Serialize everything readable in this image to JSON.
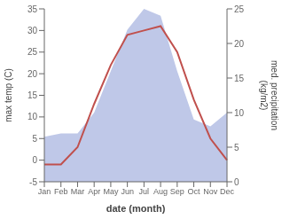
{
  "chart_data": {
    "type": "line",
    "x_label": "date (month)",
    "y_label": "max temp (C)",
    "y2_label": "med. precipitation\n(kg/m2)",
    "categories": [
      "Jan",
      "Feb",
      "Mar",
      "Apr",
      "May",
      "Jun",
      "Jul",
      "Aug",
      "Sep",
      "Oct",
      "Nov",
      "Dec"
    ],
    "series": [
      {
        "type": "area",
        "color": "#bfc8e8",
        "axis": "y2",
        "values": [
          6.5,
          7,
          7,
          10,
          16,
          22,
          25,
          24,
          16,
          9,
          8,
          10
        ]
      },
      {
        "type": "line",
        "color": "#c0504d",
        "values": [
          -1,
          -1,
          3,
          13,
          22,
          29,
          30,
          31,
          25,
          14,
          5,
          0
        ]
      }
    ],
    "ylim": [
      -5,
      35
    ],
    "yticks": [
      -5,
      0,
      5,
      10,
      15,
      20,
      25,
      30,
      35
    ],
    "y2lim": [
      0,
      25
    ],
    "y2ticks": [
      0,
      5,
      10,
      15,
      20,
      25
    ],
    "grid": false
  }
}
